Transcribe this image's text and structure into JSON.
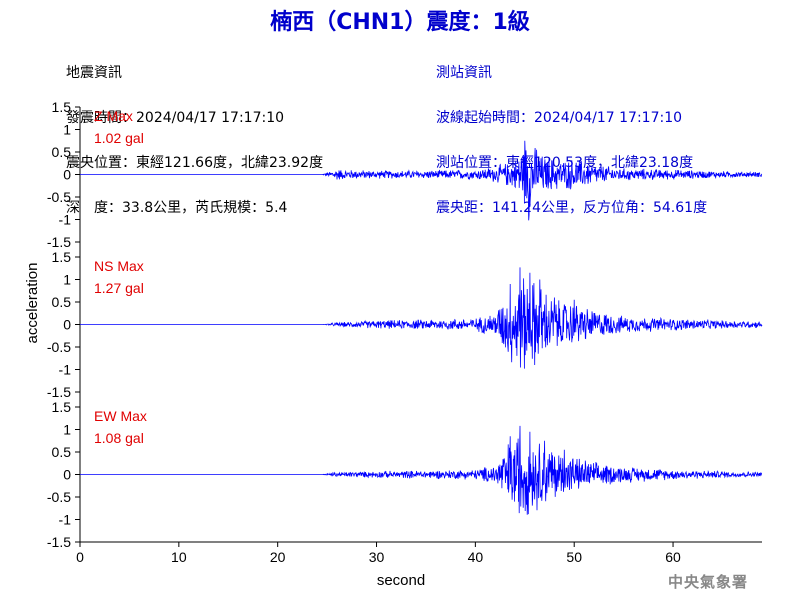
{
  "header": {
    "title": "楠西（CHN1）震度：1級"
  },
  "quake_info": {
    "heading": "地震資訊",
    "origin_time": "發震時間：2024/04/17 17:17:10",
    "epicenter": "震央位置：東經121.66度，北緯23.92度",
    "depth_magnitude": "深　度：33.8公里，芮氏規模：5.4"
  },
  "station_info": {
    "heading": "測站資訊",
    "wave_start": "波線起始時間：2024/04/17 17:17:10",
    "station_location": "測站位置：東經120.53度，北緯23.18度",
    "distance_azimuth": "震央距：141.24公里，反方位角：54.61度"
  },
  "footer": {
    "agency": "中央氣象署"
  },
  "colors": {
    "trace": "#0000ff",
    "max_label": "#e00000",
    "title": "#0000cc"
  },
  "chart_data": {
    "type": "line",
    "xlabel": "second",
    "ylabel": "acceleration",
    "xlim": [
      0,
      69
    ],
    "x_ticks": [
      "0",
      "10",
      "20",
      "30",
      "40",
      "50",
      "60"
    ],
    "grid": false,
    "panels": [
      {
        "component": "Z",
        "max_label": "Z Max",
        "max_value": "1.02 gal",
        "ylim": [
          -1.5,
          1.5
        ],
        "y_ticks": [
          "1.5",
          "1",
          "0.5",
          "0",
          "-0.5",
          "-1",
          "-1.5"
        ],
        "series": [
          {
            "values_note_free": true,
            "t": [
              0,
              24.5,
              26.0,
              26.5,
              30,
              35,
              40,
              42,
              44,
              45.0,
              45.4,
              46.2,
              47.0,
              49,
              50,
              52,
              55,
              60,
              65,
              69
            ],
            "envelope": [
              0,
              0,
              0.15,
              0.12,
              0.1,
              0.1,
              0.12,
              0.2,
              0.35,
              0.75,
              -1.02,
              0.55,
              0.45,
              0.35,
              0.4,
              0.25,
              0.15,
              0.12,
              0.08,
              0.06
            ]
          }
        ]
      },
      {
        "component": "NS",
        "max_label": "NS Max",
        "max_value": "1.27 gal",
        "ylim": [
          -1.5,
          1.5
        ],
        "y_ticks": [
          "1.5",
          "1",
          "0.5",
          "0",
          "-0.5",
          "-1",
          "-1.5"
        ],
        "series": [
          {
            "t": [
              0,
              24.5,
              26.0,
              30,
              35,
              40,
              42,
              43.5,
              44.5,
              45.5,
              46.5,
              48,
              50,
              52,
              55,
              60,
              65,
              69
            ],
            "envelope": [
              0,
              0,
              0.05,
              0.1,
              0.12,
              0.15,
              0.3,
              0.9,
              1.27,
              1.15,
              1.0,
              0.6,
              0.55,
              0.35,
              0.2,
              0.15,
              0.1,
              0.08
            ]
          }
        ]
      },
      {
        "component": "EW",
        "max_label": "EW Max",
        "max_value": "1.08 gal",
        "ylim": [
          -1.5,
          1.5
        ],
        "y_ticks": [
          "1.5",
          "1",
          "0.5",
          "0",
          "-0.5",
          "-1",
          "-1.5"
        ],
        "series": [
          {
            "t": [
              0,
              24.5,
              26.0,
              30,
              35,
              40,
              42,
              43.5,
              44.5,
              45.5,
              47,
              49,
              50,
              52,
              55,
              60,
              65,
              69
            ],
            "envelope": [
              0,
              0,
              0.06,
              0.08,
              0.1,
              0.12,
              0.25,
              0.85,
              1.08,
              0.95,
              0.75,
              0.55,
              0.45,
              0.3,
              0.2,
              0.12,
              0.08,
              0.06
            ]
          }
        ]
      }
    ]
  }
}
